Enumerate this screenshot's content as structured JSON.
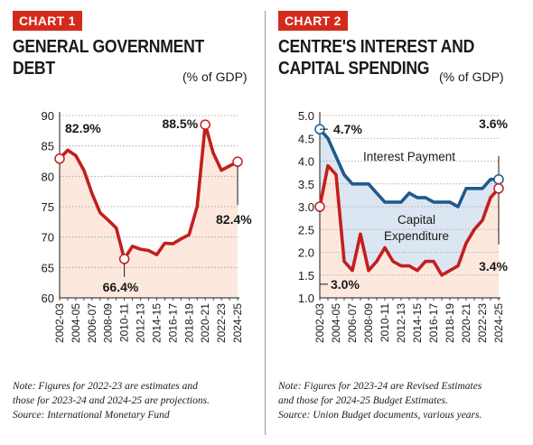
{
  "charts": [
    {
      "tag": "CHART 1",
      "title_line1": "GENERAL GOVERNMENT",
      "title_line2": "DEBT",
      "unit": "(% of GDP)",
      "note_lines": [
        "Note: Figures for 2022-23 are estimates and",
        "those for 2023-24 and 2024-25 are projections.",
        "Source: International Monetary Fund"
      ]
    },
    {
      "tag": "CHART 2",
      "title_line1": "CENTRE'S INTEREST AND",
      "title_line2": "CAPITAL SPENDING",
      "unit": "(% of GDP)",
      "note_lines": [
        "Note: Figures for 2023-24 are Revised Estimates",
        "and those for 2024-25 Budget Estimates.",
        "Source: Union Budget documents, various years."
      ]
    }
  ],
  "colors": {
    "red": "#c21f1f",
    "blue": "#1f5a8c",
    "red_fill": "#fde8de",
    "blue_fill": "#dce6f2",
    "tag": "#d42a1c"
  },
  "chart_data": [
    {
      "type": "area",
      "ylim": [
        60,
        90
      ],
      "yticks": [
        "60",
        "65",
        "70",
        "75",
        "80",
        "85",
        "90"
      ],
      "x_labels": [
        "2002-03",
        "2004-05",
        "2006-07",
        "2008-09",
        "2010-11",
        "2012-13",
        "2014-15",
        "2016-17",
        "2018-19",
        "2020-21",
        "2022-23",
        "2024-25"
      ],
      "x": [
        "2002-03",
        "2003-04",
        "2004-05",
        "2005-06",
        "2006-07",
        "2007-08",
        "2008-09",
        "2009-10",
        "2010-11",
        "2011-12",
        "2012-13",
        "2013-14",
        "2014-15",
        "2015-16",
        "2016-17",
        "2017-18",
        "2018-19",
        "2019-20",
        "2020-21",
        "2021-22",
        "2022-23",
        "2023-24",
        "2024-25"
      ],
      "series": [
        {
          "values": [
            82.9,
            84.3,
            83.4,
            81.0,
            77.2,
            74.0,
            72.8,
            71.5,
            66.4,
            68.5,
            68.0,
            67.8,
            67.1,
            69.0,
            68.9,
            69.7,
            70.4,
            75.0,
            88.5,
            83.8,
            81.0,
            81.7,
            82.4
          ]
        }
      ],
      "annotations": [
        {
          "text": "82.9%",
          "x": "2002-03",
          "y": 82.9
        },
        {
          "text": "66.4%",
          "x": "2010-11",
          "y": 66.4
        },
        {
          "text": "88.5%",
          "x": "2020-21",
          "y": 88.5
        },
        {
          "text": "82.4%",
          "x": "2024-25",
          "y": 82.4
        }
      ]
    },
    {
      "type": "line",
      "ylim": [
        1.0,
        5.0
      ],
      "yticks": [
        "1.0",
        "1.5",
        "2.0",
        "2.5",
        "3.0",
        "3.5",
        "4.0",
        "4.5",
        "5.0"
      ],
      "x_labels": [
        "2002-03",
        "2004-05",
        "2006-07",
        "2008-09",
        "2010-11",
        "2012-13",
        "2014-15",
        "2016-17",
        "2018-19",
        "2020-21",
        "2022-23",
        "2024-25"
      ],
      "x": [
        "2002-03",
        "2003-04",
        "2004-05",
        "2005-06",
        "2006-07",
        "2007-08",
        "2008-09",
        "2009-10",
        "2010-11",
        "2011-12",
        "2012-13",
        "2013-14",
        "2014-15",
        "2015-16",
        "2016-17",
        "2017-18",
        "2018-19",
        "2019-20",
        "2020-21",
        "2021-22",
        "2022-23",
        "2023-24",
        "2024-25"
      ],
      "series": [
        {
          "name": "Interest Payment",
          "values": [
            4.7,
            4.5,
            4.1,
            3.7,
            3.5,
            3.5,
            3.5,
            3.3,
            3.1,
            3.1,
            3.1,
            3.3,
            3.2,
            3.2,
            3.1,
            3.1,
            3.1,
            3.0,
            3.4,
            3.4,
            3.4,
            3.6,
            3.6
          ]
        },
        {
          "name": "Capital Expenditure",
          "values": [
            3.0,
            3.9,
            3.7,
            1.8,
            1.6,
            2.4,
            1.6,
            1.8,
            2.1,
            1.8,
            1.7,
            1.7,
            1.6,
            1.8,
            1.8,
            1.5,
            1.6,
            1.7,
            2.2,
            2.5,
            2.7,
            3.2,
            3.4
          ]
        }
      ],
      "series_labels": [
        "Interest Payment",
        "Capital",
        "Expenditure"
      ],
      "annotations": [
        {
          "text": "4.7%",
          "x": "2002-03",
          "y": 4.7
        },
        {
          "text": "3.0%",
          "x": "2002-03",
          "y": 3.0
        },
        {
          "text": "3.6%",
          "x": "2024-25",
          "y": 3.6
        },
        {
          "text": "3.4%",
          "x": "2024-25",
          "y": 3.4
        }
      ]
    }
  ]
}
